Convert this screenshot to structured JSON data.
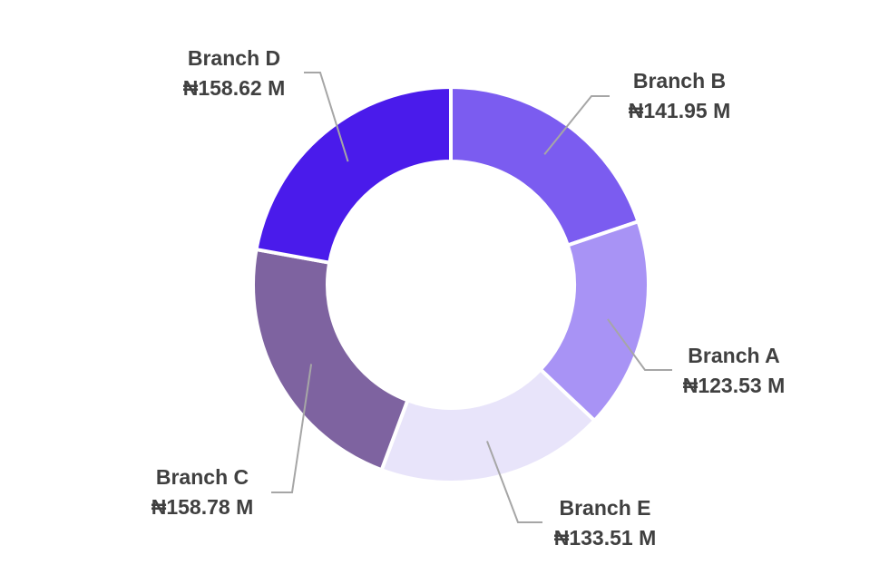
{
  "chart_data": {
    "type": "pie",
    "variant": "donut",
    "title": "",
    "legend": "none",
    "slice_order": [
      "Branch B",
      "Branch A",
      "Branch E",
      "Branch C",
      "Branch D"
    ],
    "slices": [
      {
        "name": "Branch B",
        "value": 141.95,
        "label": "₦141.95 M",
        "color": "#7b5cf0"
      },
      {
        "name": "Branch A",
        "value": 123.53,
        "label": "₦123.53 M",
        "color": "#a893f5"
      },
      {
        "name": "Branch E",
        "value": 133.51,
        "label": "₦133.51 M",
        "color": "#e8e4fa"
      },
      {
        "name": "Branch C",
        "value": 158.78,
        "label": "₦158.78 M",
        "color": "#7e63a0"
      },
      {
        "name": "Branch D",
        "value": 158.62,
        "label": "₦158.62 M",
        "color": "#4a1beb"
      }
    ],
    "unit": "₦ M"
  }
}
